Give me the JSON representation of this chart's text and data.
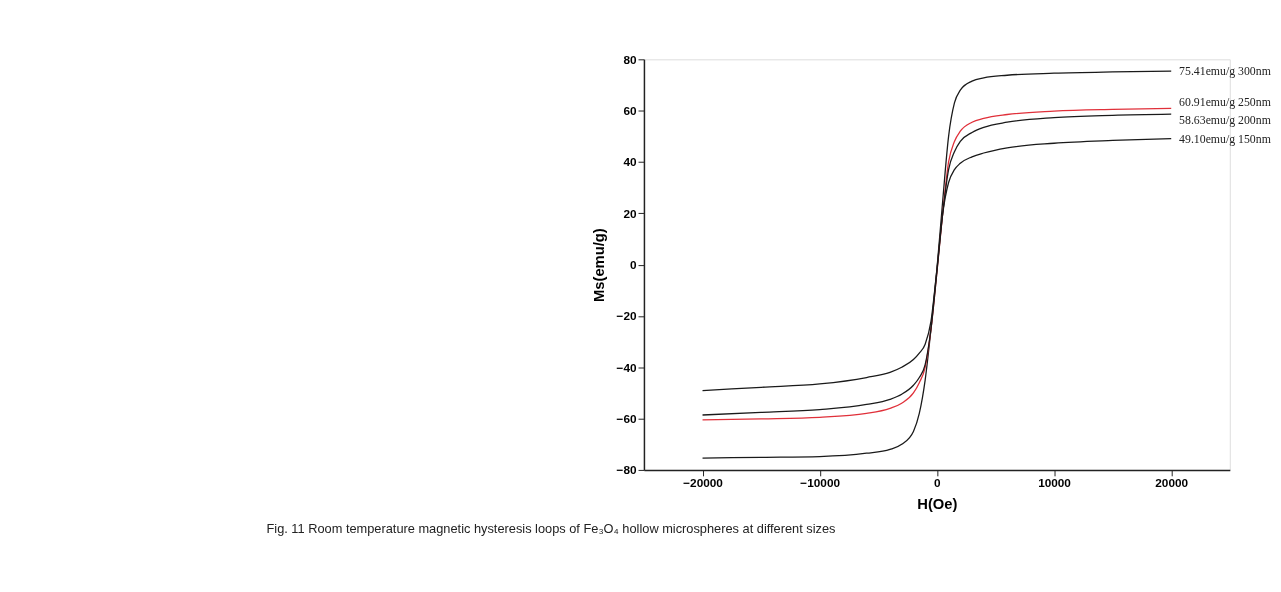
{
  "chart_data": {
    "type": "line",
    "xlabel": "H(Oe)",
    "ylabel": "Ms(emu/g)",
    "annotations": [
      "Fig. 11 Room temperature magnetic hysteresis loops of Fe₃O₄ hollow microspheres at different sizes"
    ],
    "xlim": [
      -25000,
      25000
    ],
    "xticks": [
      -20000,
      -10000,
      0,
      10000,
      20000
    ],
    "ylim": [
      -80,
      80
    ],
    "yticks": [
      -80,
      -60,
      -40,
      -20,
      0,
      20,
      40,
      60,
      80
    ],
    "grid": false,
    "marker": "none",
    "line_style": "solid",
    "x": [
      -20000,
      -15000,
      -10000,
      -6000,
      -4000,
      -3000,
      -2000,
      -1500,
      -1000,
      -500,
      0,
      500,
      1000,
      1500,
      2000,
      3000,
      4000,
      6000,
      10000,
      15000,
      20000
    ],
    "series": [
      {
        "name": "75.41emu/g 300nm",
        "color": "#1a1a1a",
        "values": [
          -75.4,
          -75.1,
          -74.8,
          -73.5,
          -72,
          -70,
          -65,
          -58,
          -45,
          -25,
          -2,
          25,
          50,
          63,
          68,
          71.5,
          72.8,
          73.8,
          74.6,
          75.1,
          75.41
        ]
      },
      {
        "name": "60.91emu/g 250nm",
        "color": "#e0303a",
        "values": [
          -60.5,
          -60.1,
          -59.5,
          -58,
          -56,
          -54,
          -50,
          -46,
          -40,
          -25,
          -3,
          20,
          40,
          48,
          52,
          55.5,
          57,
          58.5,
          59.8,
          60.5,
          60.91
        ]
      },
      {
        "name": "58.63emu/g 200nm",
        "color": "#1a1a1a",
        "values": [
          -58.6,
          -57.6,
          -56.5,
          -54.5,
          -52.5,
          -50.5,
          -47,
          -44,
          -39,
          -25,
          -3,
          20,
          37,
          44,
          48,
          51.5,
          53.5,
          55.5,
          57.3,
          58.2,
          58.63
        ]
      },
      {
        "name": "49.10emu/g 150nm",
        "color": "#1a1a1a",
        "values": [
          -49.1,
          -47.8,
          -46.5,
          -44,
          -42,
          -40,
          -37,
          -34.5,
          -31,
          -22,
          -2,
          20,
          32,
          37,
          39.5,
          42,
          43.5,
          45.5,
          47.3,
          48.4,
          49.1
        ]
      }
    ]
  }
}
